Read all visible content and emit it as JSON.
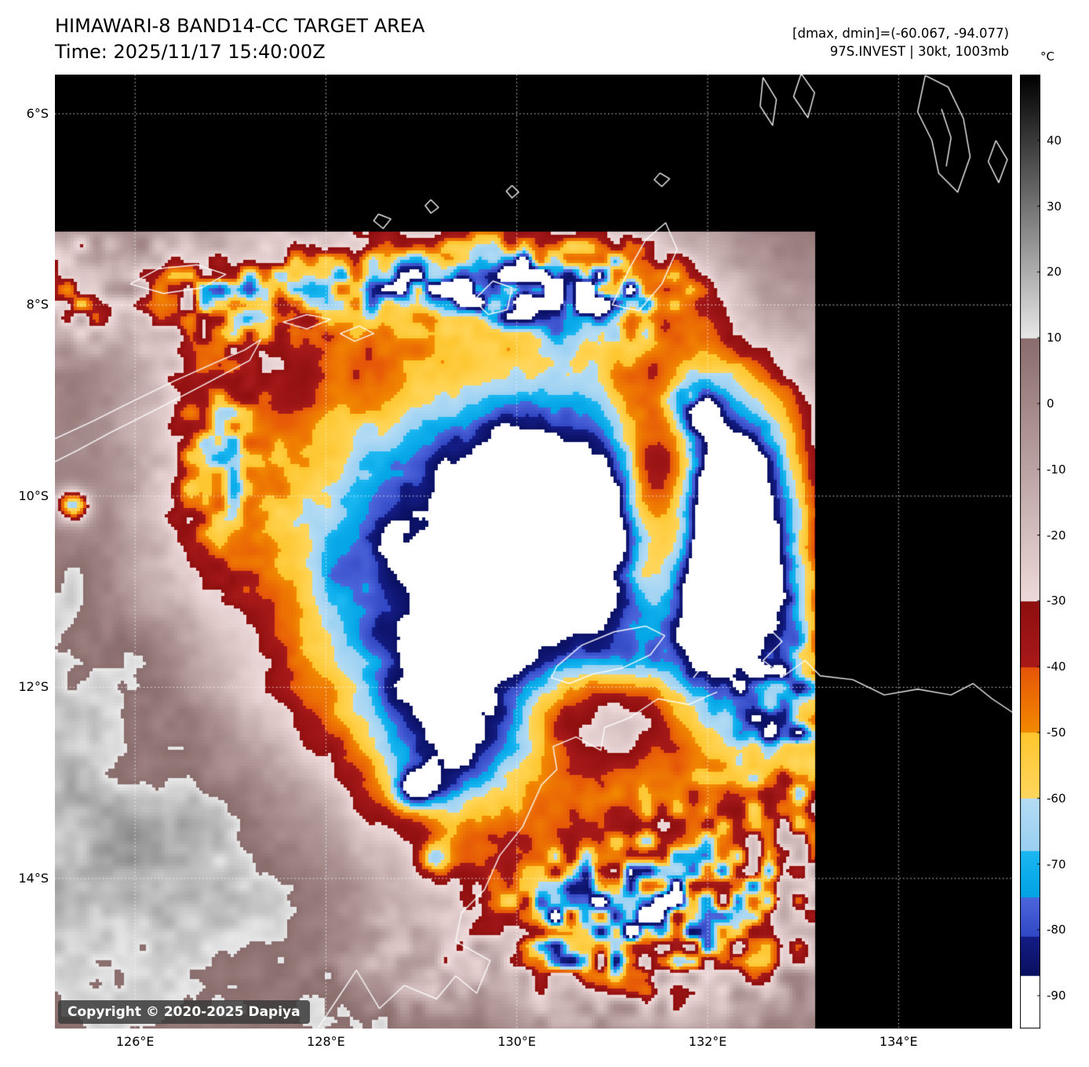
{
  "header": {
    "title": "HIMAWARI-8 BAND14-CC TARGET AREA",
    "time_line": "Time: 2025/11/17 15:40:00Z",
    "dmax_dmin": "[dmax, dmin]=(-60.067, -94.077)",
    "storm_info": "97S.INVEST | 30kt, 1003mb"
  },
  "copyright": "Copyright © 2020-2025 Dapiya",
  "colorbar": {
    "unit": "°C",
    "domain": [
      50,
      -95
    ],
    "ticks": [
      {
        "v": 40,
        "label": "40"
      },
      {
        "v": 30,
        "label": "30"
      },
      {
        "v": 20,
        "label": "20"
      },
      {
        "v": 10,
        "label": "10"
      },
      {
        "v": 0,
        "label": "0"
      },
      {
        "v": -10,
        "label": "-10"
      },
      {
        "v": -20,
        "label": "-20"
      },
      {
        "v": -30,
        "label": "-30"
      },
      {
        "v": -40,
        "label": "-40"
      },
      {
        "v": -50,
        "label": "-50"
      },
      {
        "v": -60,
        "label": "-60"
      },
      {
        "v": -70,
        "label": "-70"
      },
      {
        "v": -80,
        "label": "-80"
      },
      {
        "v": -90,
        "label": "-90"
      }
    ],
    "segments": [
      {
        "from": 50,
        "to": 10,
        "top": "#000000",
        "bottom": "#e8e8e8"
      },
      {
        "from": 10,
        "to": -30,
        "top": "#8a6d6d",
        "bottom": "#eedada"
      },
      {
        "from": -30,
        "to": -40,
        "top": "#8f0f0f",
        "bottom": "#a81a1a"
      },
      {
        "from": -40,
        "to": -50,
        "top": "#e65608",
        "bottom": "#f28a00"
      },
      {
        "from": -50,
        "to": -60,
        "top": "#fec62e",
        "bottom": "#ffd75e"
      },
      {
        "from": -60,
        "to": -68,
        "top": "#b5dcf4",
        "bottom": "#99d0f2"
      },
      {
        "from": -68,
        "to": -75,
        "top": "#1cb8f2",
        "bottom": "#00a3e4"
      },
      {
        "from": -75,
        "to": -81,
        "top": "#4e66dc",
        "bottom": "#3148c4"
      },
      {
        "from": -81,
        "to": -87,
        "top": "#141d86",
        "bottom": "#0a1060"
      },
      {
        "from": -87,
        "to": -95,
        "top": "#ffffff",
        "bottom": "#ffffff"
      }
    ]
  },
  "axes": {
    "lat_ticks": [
      {
        "v": 6,
        "label": "6°S"
      },
      {
        "v": 8,
        "label": "8°S"
      },
      {
        "v": 10,
        "label": "10°S"
      },
      {
        "v": 12,
        "label": "12°S"
      },
      {
        "v": 14,
        "label": "14°S"
      }
    ],
    "lon_ticks": [
      {
        "v": 126,
        "label": "126°E"
      },
      {
        "v": 128,
        "label": "128°E"
      },
      {
        "v": 130,
        "label": "130°E"
      },
      {
        "v": 132,
        "label": "132°E"
      },
      {
        "v": 134,
        "label": "134°E"
      }
    ]
  },
  "chart_data": {
    "type": "heatmap",
    "title": "HIMAWARI-8 BAND14-CC TARGET AREA",
    "satellite": "HIMAWARI-8",
    "band": "BAND14-CC",
    "time_utc": "2025/11/17 15:40:00Z",
    "storm": {
      "id": "97S.INVEST",
      "intensity_kt": 30,
      "pressure_mb": 1003
    },
    "temp_extrema_c": {
      "dmax": -60.067,
      "dmin": -94.077
    },
    "lon_range_e": [
      125.16,
      135.19
    ],
    "lat_range_s": [
      5.59,
      15.57
    ],
    "grid_lons_e": [
      126,
      128,
      130,
      132,
      134
    ],
    "grid_lats_s": [
      6,
      8,
      10,
      12,
      14
    ],
    "swath": {
      "lon_min": 125.16,
      "lon_max": 133.13,
      "lat_top_s": 7.23
    },
    "base_sea_temp_c": 7,
    "noise": {
      "octaves": [
        {
          "wl": 1.5,
          "amp": 6.5,
          "seed": 11
        },
        {
          "wl": 0.65,
          "amp": 5.0,
          "seed": 23
        },
        {
          "wl": 0.3,
          "amp": 4.0,
          "seed": 37
        },
        {
          "wl": 0.13,
          "amp": 3.0,
          "seed": 51
        }
      ],
      "cell_wl": 0.16,
      "cell_seed": 77
    },
    "features": [
      {
        "name": "cold-shield",
        "lon": 129.8,
        "lat": 10.7,
        "sx": 2.9,
        "sy": 2.9,
        "p": 1.1,
        "amp": -100,
        "conv": false
      },
      {
        "name": "cdo-core-ne",
        "lon": 130.35,
        "lat": 10.25,
        "sx": 0.95,
        "sy": 1.05,
        "p": 1.6,
        "amp": -28,
        "conv": false
      },
      {
        "name": "cdo-core-sw",
        "lon": 129.85,
        "lat": 10.9,
        "sx": 0.5,
        "sy": 0.45,
        "p": 1.5,
        "amp": -18,
        "conv": false
      },
      {
        "name": "south-extension",
        "lon": 129.3,
        "lat": 12.5,
        "sx": 0.75,
        "sy": 0.95,
        "p": 1.0,
        "amp": -30,
        "conv": false
      },
      {
        "name": "east-cold-band",
        "lon": 132.3,
        "lat": 10.5,
        "sx": 0.85,
        "sy": 1.9,
        "p": 1.3,
        "amp": -75,
        "conv": false
      },
      {
        "name": "east-blue-patch",
        "lon": 132.3,
        "lat": 10.9,
        "sx": 0.35,
        "sy": 0.55,
        "p": 1.0,
        "amp": -14,
        "conv": false
      },
      {
        "name": "ne-cells",
        "lon": 131.85,
        "lat": 9.05,
        "sx": 0.3,
        "sy": 0.3,
        "p": 1.0,
        "amp": -25,
        "conv": true
      },
      {
        "name": "dry-slot",
        "lon": 131.55,
        "lat": 10.15,
        "sx": 0.42,
        "sy": 1.2,
        "p": 1.4,
        "amp": 52,
        "conv": false
      },
      {
        "name": "se-warm-wedge",
        "lon": 130.9,
        "lat": 12.3,
        "sx": 0.85,
        "sy": 0.5,
        "p": 1.2,
        "amp": 38,
        "conv": false
      },
      {
        "name": "north-band-west",
        "lon": 127.1,
        "lat": 7.8,
        "sx": 1.4,
        "sy": 0.55,
        "p": 1.0,
        "amp": -48,
        "conv": true
      },
      {
        "name": "north-band-mid",
        "lon": 129.6,
        "lat": 7.75,
        "sx": 1.1,
        "sy": 0.45,
        "p": 1.0,
        "amp": -52,
        "conv": true
      },
      {
        "name": "north-band-east",
        "lon": 130.9,
        "lat": 7.85,
        "sx": 0.9,
        "sy": 0.5,
        "p": 1.0,
        "amp": -45,
        "conv": true
      },
      {
        "name": "nw-edge-cells",
        "lon": 125.35,
        "lat": 7.8,
        "sx": 0.35,
        "sy": 0.6,
        "p": 1.0,
        "amp": -40,
        "conv": true
      },
      {
        "name": "west-band",
        "lon": 126.9,
        "lat": 9.6,
        "sx": 0.55,
        "sy": 1.3,
        "p": 1.0,
        "amp": -28,
        "conv": true
      },
      {
        "name": "west-edge-dot",
        "lon": 125.35,
        "lat": 10.1,
        "sx": 0.18,
        "sy": 0.18,
        "p": 1.0,
        "amp": -70,
        "conv": false
      },
      {
        "name": "se-convective-mass",
        "lon": 131.9,
        "lat": 14.3,
        "sx": 1.5,
        "sy": 1.1,
        "p": 1.2,
        "amp": -52,
        "conv": true
      },
      {
        "name": "east-mass",
        "lon": 133.0,
        "lat": 12.6,
        "sx": 0.65,
        "sy": 1.0,
        "p": 1.0,
        "amp": -42,
        "conv": true
      },
      {
        "name": "south-cells",
        "lon": 130.6,
        "lat": 14.6,
        "sx": 0.9,
        "sy": 0.7,
        "p": 1.0,
        "amp": -40,
        "conv": true
      },
      {
        "name": "south-cells-2",
        "lon": 128.9,
        "lat": 14.9,
        "sx": 0.7,
        "sy": 0.5,
        "p": 1.0,
        "amp": -25,
        "conv": true
      },
      {
        "name": "sw-stratocu-warm",
        "lon": 126.6,
        "lat": 13.9,
        "sx": 2.0,
        "sy": 1.4,
        "p": 1.0,
        "amp": 13,
        "conv": false
      },
      {
        "name": "w-warm",
        "lon": 125.7,
        "lat": 11.9,
        "sx": 1.2,
        "sy": 1.2,
        "p": 1.0,
        "amp": 9,
        "conv": false
      },
      {
        "name": "south-cold-dot-1",
        "lon": 128.95,
        "lat": 13.05,
        "sx": 0.2,
        "sy": 0.2,
        "p": 1.0,
        "amp": -42,
        "conv": false
      },
      {
        "name": "south-cold-dot-2",
        "lon": 129.15,
        "lat": 13.8,
        "sx": 0.18,
        "sy": 0.18,
        "p": 1.0,
        "amp": -35,
        "conv": false
      }
    ],
    "coastlines": [
      {
        "name": "timor",
        "pts": [
          [
            125.16,
            9.4
          ],
          [
            125.55,
            9.22
          ],
          [
            125.95,
            9.02
          ],
          [
            126.4,
            8.8
          ],
          [
            126.85,
            8.6
          ],
          [
            127.15,
            8.47
          ],
          [
            127.32,
            8.36
          ],
          [
            127.2,
            8.58
          ],
          [
            126.75,
            8.82
          ],
          [
            126.25,
            9.08
          ],
          [
            125.75,
            9.33
          ],
          [
            125.4,
            9.52
          ],
          [
            125.16,
            9.64
          ]
        ]
      },
      {
        "name": "wetar",
        "pts": [
          [
            125.95,
            7.78
          ],
          [
            126.25,
            7.62
          ],
          [
            126.65,
            7.58
          ],
          [
            126.95,
            7.68
          ],
          [
            126.7,
            7.82
          ],
          [
            126.3,
            7.88
          ],
          [
            125.95,
            7.78
          ]
        ]
      },
      {
        "name": "leti-moa",
        "pts": [
          [
            127.55,
            8.18
          ],
          [
            127.8,
            8.1
          ],
          [
            128.05,
            8.15
          ],
          [
            127.8,
            8.25
          ],
          [
            127.55,
            8.18
          ]
        ]
      },
      {
        "name": "luang",
        "pts": [
          [
            128.15,
            8.3
          ],
          [
            128.35,
            8.22
          ],
          [
            128.5,
            8.3
          ],
          [
            128.3,
            8.38
          ],
          [
            128.15,
            8.3
          ]
        ]
      },
      {
        "name": "babar",
        "pts": [
          [
            129.55,
            7.95
          ],
          [
            129.75,
            7.75
          ],
          [
            129.95,
            7.82
          ],
          [
            129.9,
            8.05
          ],
          [
            129.7,
            8.1
          ],
          [
            129.55,
            7.95
          ]
        ]
      },
      {
        "name": "damar",
        "pts": [
          [
            128.55,
            7.05
          ],
          [
            128.68,
            7.1
          ],
          [
            128.6,
            7.2
          ],
          [
            128.5,
            7.12
          ],
          [
            128.55,
            7.05
          ]
        ]
      },
      {
        "name": "serua",
        "pts": [
          [
            129.1,
            6.9
          ],
          [
            129.18,
            6.98
          ],
          [
            129.1,
            7.04
          ],
          [
            129.04,
            6.96
          ],
          [
            129.1,
            6.9
          ]
        ]
      },
      {
        "name": "manuk",
        "pts": [
          [
            129.95,
            6.75
          ],
          [
            130.02,
            6.82
          ],
          [
            129.95,
            6.88
          ],
          [
            129.89,
            6.81
          ],
          [
            129.95,
            6.75
          ]
        ]
      },
      {
        "name": "tanimbar",
        "pts": [
          [
            131.0,
            8.0
          ],
          [
            131.18,
            7.62
          ],
          [
            131.35,
            7.32
          ],
          [
            131.56,
            7.14
          ],
          [
            131.68,
            7.42
          ],
          [
            131.52,
            7.78
          ],
          [
            131.28,
            8.06
          ],
          [
            131.0,
            8.0
          ]
        ]
      },
      {
        "name": "kur",
        "pts": [
          [
            131.5,
            6.62
          ],
          [
            131.6,
            6.68
          ],
          [
            131.52,
            6.76
          ],
          [
            131.44,
            6.69
          ],
          [
            131.5,
            6.62
          ]
        ]
      },
      {
        "name": "kai-west",
        "pts": [
          [
            132.58,
            5.62
          ],
          [
            132.72,
            5.85
          ],
          [
            132.68,
            6.12
          ],
          [
            132.55,
            5.92
          ],
          [
            132.58,
            5.62
          ]
        ]
      },
      {
        "name": "kai-east",
        "pts": [
          [
            132.98,
            5.58
          ],
          [
            133.12,
            5.78
          ],
          [
            133.05,
            6.04
          ],
          [
            132.9,
            5.82
          ],
          [
            132.98,
            5.58
          ]
        ]
      },
      {
        "name": "aru",
        "pts": [
          [
            134.28,
            5.6
          ],
          [
            134.52,
            5.72
          ],
          [
            134.68,
            6.05
          ],
          [
            134.75,
            6.45
          ],
          [
            134.62,
            6.82
          ],
          [
            134.42,
            6.62
          ],
          [
            134.35,
            6.28
          ],
          [
            134.2,
            5.98
          ],
          [
            134.28,
            5.6
          ]
        ]
      },
      {
        "name": "aru-channel",
        "pts": [
          [
            134.45,
            5.95
          ],
          [
            134.55,
            6.25
          ],
          [
            134.5,
            6.55
          ]
        ]
      },
      {
        "name": "island-east",
        "pts": [
          [
            135.02,
            6.28
          ],
          [
            135.14,
            6.48
          ],
          [
            135.05,
            6.72
          ],
          [
            134.94,
            6.5
          ],
          [
            135.02,
            6.28
          ]
        ]
      },
      {
        "name": "melville-bathurst",
        "pts": [
          [
            130.42,
            11.78
          ],
          [
            130.68,
            11.56
          ],
          [
            131.02,
            11.42
          ],
          [
            131.35,
            11.36
          ],
          [
            131.55,
            11.46
          ],
          [
            131.4,
            11.66
          ],
          [
            131.1,
            11.8
          ],
          [
            130.8,
            11.86
          ],
          [
            130.55,
            11.96
          ],
          [
            130.36,
            11.9
          ],
          [
            130.42,
            11.78
          ]
        ]
      },
      {
        "name": "cobourg-arnhem",
        "pts": [
          [
            131.85,
            11.9
          ],
          [
            132.05,
            11.65
          ],
          [
            131.95,
            11.45
          ],
          [
            132.18,
            11.22
          ],
          [
            132.38,
            11.32
          ],
          [
            132.22,
            11.48
          ],
          [
            132.48,
            11.52
          ],
          [
            132.62,
            11.36
          ],
          [
            132.78,
            11.52
          ],
          [
            132.58,
            11.72
          ],
          [
            132.8,
            11.88
          ],
          [
            133.02,
            11.72
          ],
          [
            133.18,
            11.88
          ],
          [
            133.52,
            11.92
          ],
          [
            133.85,
            12.08
          ],
          [
            134.2,
            12.02
          ],
          [
            134.55,
            12.08
          ],
          [
            134.78,
            11.96
          ],
          [
            134.98,
            12.12
          ],
          [
            135.22,
            12.28
          ],
          [
            135.38,
            12.12
          ],
          [
            135.52,
            12.32
          ],
          [
            135.32,
            12.58
          ],
          [
            135.55,
            12.72
          ],
          [
            135.42,
            13.02
          ],
          [
            135.52,
            13.28
          ]
        ]
      },
      {
        "name": "nt-mainland",
        "pts": [
          [
            132.1,
            12.05
          ],
          [
            131.8,
            12.18
          ],
          [
            131.48,
            12.12
          ],
          [
            131.18,
            12.32
          ],
          [
            130.92,
            12.42
          ],
          [
            130.88,
            12.66
          ],
          [
            130.62,
            12.52
          ],
          [
            130.38,
            12.62
          ],
          [
            130.42,
            12.86
          ],
          [
            130.26,
            13.02
          ],
          [
            130.06,
            13.46
          ],
          [
            129.82,
            13.76
          ],
          [
            129.66,
            14.12
          ],
          [
            129.42,
            14.36
          ],
          [
            129.36,
            14.66
          ],
          [
            129.72,
            14.86
          ],
          [
            129.58,
            15.2
          ],
          [
            129.36,
            15.02
          ],
          [
            129.16,
            15.26
          ],
          [
            128.82,
            15.12
          ],
          [
            128.56,
            15.36
          ],
          [
            128.32,
            14.96
          ],
          [
            128.12,
            15.26
          ],
          [
            127.92,
            15.56
          ]
        ]
      }
    ]
  }
}
